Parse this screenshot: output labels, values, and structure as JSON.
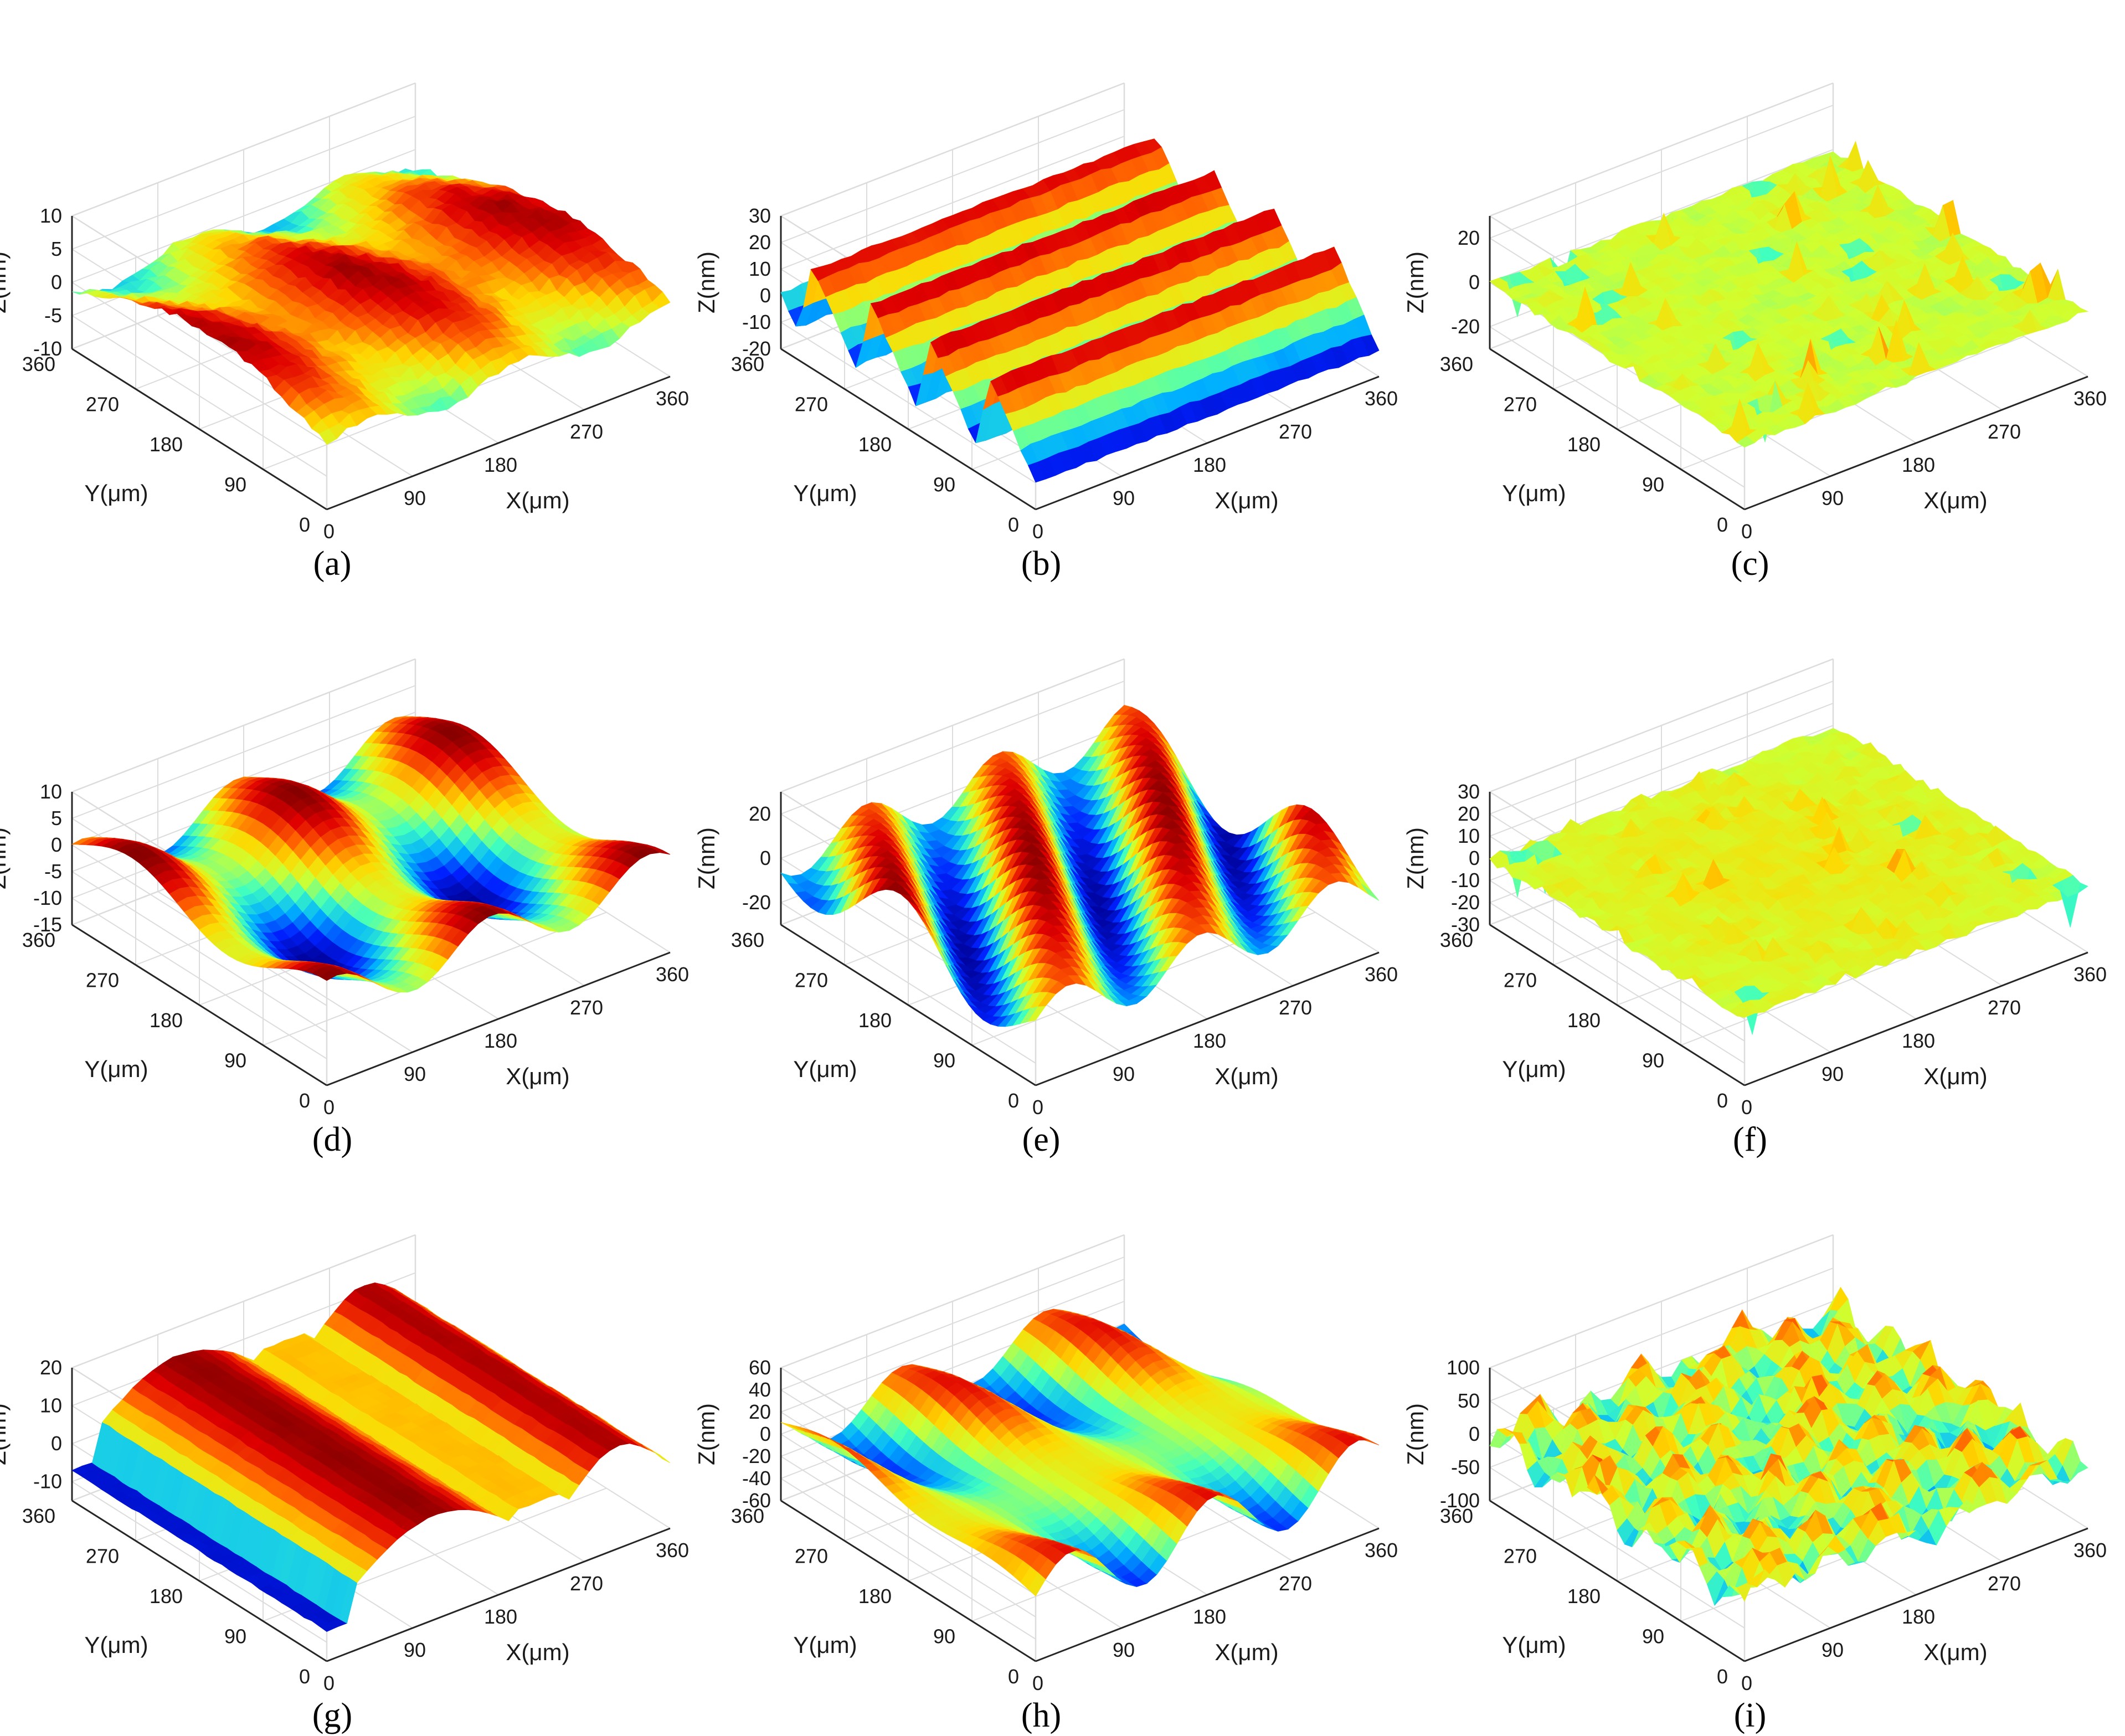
{
  "colors": {
    "colormap": "jet",
    "jet_stops": [
      "#00008f",
      "#0020ff",
      "#00afff",
      "#40ffbf",
      "#cfff30",
      "#ffd700",
      "#ff6000",
      "#df0000",
      "#800000"
    ],
    "axis_line": "#262626",
    "grid_line": "#dcdcdc",
    "text": "#1a1a1a"
  },
  "chart_data": [
    {
      "panel": "(a)",
      "type": "surface",
      "surface_style": "wavy-ridges",
      "xlabel": "X(μm)",
      "ylabel": "Y(μm)",
      "zlabel": "Z(nm)",
      "xticks": [
        "0",
        "90",
        "180",
        "270",
        "360"
      ],
      "yticks": [
        "0",
        "90",
        "180",
        "270",
        "360"
      ],
      "zticks": [
        "-10",
        "-5",
        "0",
        "5",
        "10"
      ],
      "xlim": [
        0,
        360
      ],
      "ylim": [
        0,
        360
      ],
      "zlim": [
        -10,
        10
      ],
      "grid": true
    },
    {
      "panel": "(b)",
      "type": "surface",
      "surface_style": "parallel-ridges-x",
      "xlabel": "X(μm)",
      "ylabel": "Y(μm)",
      "zlabel": "Z(nm)",
      "xticks": [
        "0",
        "90",
        "180",
        "270",
        "360"
      ],
      "yticks": [
        "0",
        "90",
        "180",
        "270",
        "360"
      ],
      "zticks": [
        "-20",
        "-10",
        "0",
        "10",
        "20",
        "30"
      ],
      "xlim": [
        0,
        360
      ],
      "ylim": [
        0,
        360
      ],
      "zlim": [
        -20,
        30
      ],
      "grid": true
    },
    {
      "panel": "(c)",
      "type": "surface",
      "surface_style": "random-fine",
      "xlabel": "X(μm)",
      "ylabel": "Y(μm)",
      "zlabel": "Z(nm)",
      "xticks": [
        "0",
        "90",
        "180",
        "270",
        "360"
      ],
      "yticks": [
        "0",
        "90",
        "180",
        "270",
        "360"
      ],
      "zticks": [
        "-20",
        "0",
        "20"
      ],
      "xlim": [
        0,
        360
      ],
      "ylim": [
        0,
        360
      ],
      "zlim": [
        -30,
        30
      ],
      "grid": true
    },
    {
      "panel": "(d)",
      "type": "surface",
      "surface_style": "sinusoid-2d",
      "xlabel": "X(μm)",
      "ylabel": "Y(μm)",
      "zlabel": "Z(nm)",
      "xticks": [
        "0",
        "90",
        "180",
        "270",
        "360"
      ],
      "yticks": [
        "0",
        "90",
        "180",
        "270",
        "360"
      ],
      "zticks": [
        "-15",
        "-10",
        "-5",
        "0",
        "5",
        "10"
      ],
      "xlim": [
        0,
        360
      ],
      "ylim": [
        0,
        360
      ],
      "zlim": [
        -15,
        10
      ],
      "grid": true
    },
    {
      "panel": "(e)",
      "type": "surface",
      "surface_style": "diagonal-waves",
      "xlabel": "X(μm)",
      "ylabel": "Y(μm)",
      "zlabel": "Z(nm)",
      "xticks": [
        "0",
        "90",
        "180",
        "270",
        "360"
      ],
      "yticks": [
        "0",
        "90",
        "180",
        "270",
        "360"
      ],
      "zticks": [
        "-20",
        "0",
        "20"
      ],
      "xlim": [
        0,
        360
      ],
      "ylim": [
        0,
        360
      ],
      "zlim": [
        -30,
        30
      ],
      "grid": true
    },
    {
      "panel": "(f)",
      "type": "surface",
      "surface_style": "random-spiky",
      "xlabel": "X(μm)",
      "ylabel": "Y(μm)",
      "zlabel": "Z(nm)",
      "xticks": [
        "0",
        "90",
        "180",
        "270",
        "360"
      ],
      "yticks": [
        "0",
        "90",
        "180",
        "270",
        "360"
      ],
      "zticks": [
        "-30",
        "-20",
        "-10",
        "0",
        "10",
        "20",
        "30"
      ],
      "xlim": [
        0,
        360
      ],
      "ylim": [
        0,
        360
      ],
      "zlim": [
        -30,
        30
      ],
      "grid": true
    },
    {
      "panel": "(g)",
      "type": "surface",
      "surface_style": "parallel-ridges-y",
      "xlabel": "X(μm)",
      "ylabel": "Y(μm)",
      "zlabel": "Z(nm)",
      "xticks": [
        "0",
        "90",
        "180",
        "270",
        "360"
      ],
      "yticks": [
        "0",
        "90",
        "180",
        "270",
        "360"
      ],
      "zticks": [
        "-10",
        "0",
        "10",
        "20"
      ],
      "xlim": [
        0,
        360
      ],
      "ylim": [
        0,
        360
      ],
      "zlim": [
        -15,
        20
      ],
      "grid": true
    },
    {
      "panel": "(h)",
      "type": "surface",
      "surface_style": "large-waves",
      "xlabel": "X(μm)",
      "ylabel": "Y(μm)",
      "zlabel": "Z(nm)",
      "xticks": [
        "0",
        "90",
        "180",
        "270",
        "360"
      ],
      "yticks": [
        "0",
        "90",
        "180",
        "270",
        "360"
      ],
      "zticks": [
        "-60",
        "-40",
        "-20",
        "0",
        "20",
        "40",
        "60"
      ],
      "xlim": [
        0,
        360
      ],
      "ylim": [
        0,
        360
      ],
      "zlim": [
        -60,
        60
      ],
      "grid": true
    },
    {
      "panel": "(i)",
      "type": "surface",
      "surface_style": "bumpy-random",
      "xlabel": "X(μm)",
      "ylabel": "Y(μm)",
      "zlabel": "Z(nm)",
      "xticks": [
        "0",
        "90",
        "180",
        "270",
        "360"
      ],
      "yticks": [
        "0",
        "90",
        "180",
        "270",
        "360"
      ],
      "zticks": [
        "-100",
        "-50",
        "0",
        "50",
        "100"
      ],
      "xlim": [
        0,
        360
      ],
      "ylim": [
        0,
        360
      ],
      "zlim": [
        -100,
        100
      ],
      "grid": true
    }
  ]
}
